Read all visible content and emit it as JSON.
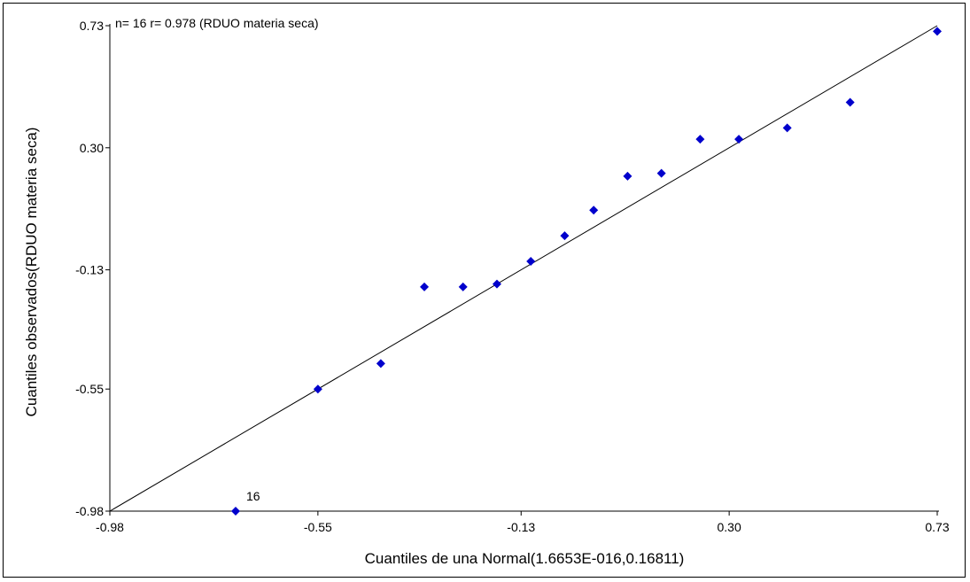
{
  "chart_data": {
    "type": "scatter",
    "title": "n= 16 r= 0.978 (RDUO materia seca)",
    "xlabel": "Cuantiles de una Normal(1.6653E-016,0.16811)",
    "ylabel": "Cuantiles observados(RDUO materia seca)",
    "xlim": [
      -0.98,
      0.73
    ],
    "ylim": [
      -0.98,
      0.73
    ],
    "xticks": [
      "-0.98",
      "-0.55",
      "-0.13",
      "0.30",
      "0.73"
    ],
    "yticks": [
      "-0.98",
      "-0.55",
      "-0.13",
      "0.30",
      "0.73"
    ],
    "point_color": "#0000cc",
    "line_color": "#000000",
    "reference_line": [
      [
        -0.98,
        -0.98
      ],
      [
        0.73,
        0.73
      ]
    ],
    "points": [
      {
        "x": -0.55,
        "y": -0.55
      },
      {
        "x": -0.42,
        "y": -0.46
      },
      {
        "x": -0.33,
        "y": -0.19
      },
      {
        "x": -0.25,
        "y": -0.19
      },
      {
        "x": -0.18,
        "y": -0.18
      },
      {
        "x": -0.11,
        "y": -0.1
      },
      {
        "x": -0.04,
        "y": -0.01
      },
      {
        "x": 0.02,
        "y": 0.08
      },
      {
        "x": 0.09,
        "y": 0.2
      },
      {
        "x": 0.16,
        "y": 0.21
      },
      {
        "x": 0.24,
        "y": 0.33
      },
      {
        "x": 0.32,
        "y": 0.33
      },
      {
        "x": 0.42,
        "y": 0.37
      },
      {
        "x": 0.55,
        "y": 0.46
      },
      {
        "x": 0.73,
        "y": 0.71
      }
    ],
    "outlier": {
      "x": -0.72,
      "y": -0.98,
      "label": "16"
    }
  }
}
